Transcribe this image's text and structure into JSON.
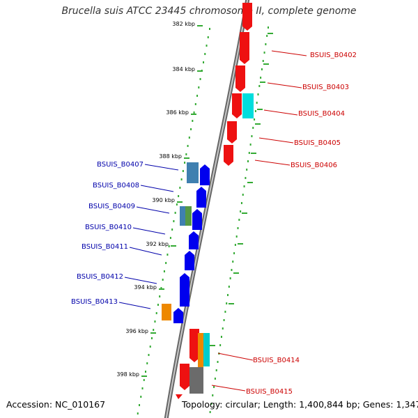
{
  "title": "Brucella suis ATCC 23445 chromosome II, complete genome",
  "accession": "Accession: NC_010167",
  "topology": "Topology: circular; Length: 1,400,844 bp; Genes: 1,347",
  "colors": {
    "backbone": "#888888",
    "tick": "#33aa33",
    "forward_strand_label": "#cc0000",
    "reverse_strand_label": "#0000aa"
  },
  "kbp_markers": [
    "382 kbp",
    "384 kbp",
    "386 kbp",
    "388 kbp",
    "390 kbp",
    "392 kbp",
    "394 kbp",
    "396 kbp",
    "398 kbp"
  ],
  "genes_right": [
    "BSUIS_B0402",
    "BSUIS_B0403",
    "BSUIS_B0404",
    "BSUIS_B0405",
    "BSUIS_B0406",
    "BSUIS_B0414",
    "BSUIS_B0415"
  ],
  "genes_left": [
    "BSUIS_B0407",
    "BSUIS_B0408",
    "BSUIS_B0409",
    "BSUIS_B0410",
    "BSUIS_B0411",
    "BSUIS_B0412",
    "BSUIS_B0413"
  ]
}
